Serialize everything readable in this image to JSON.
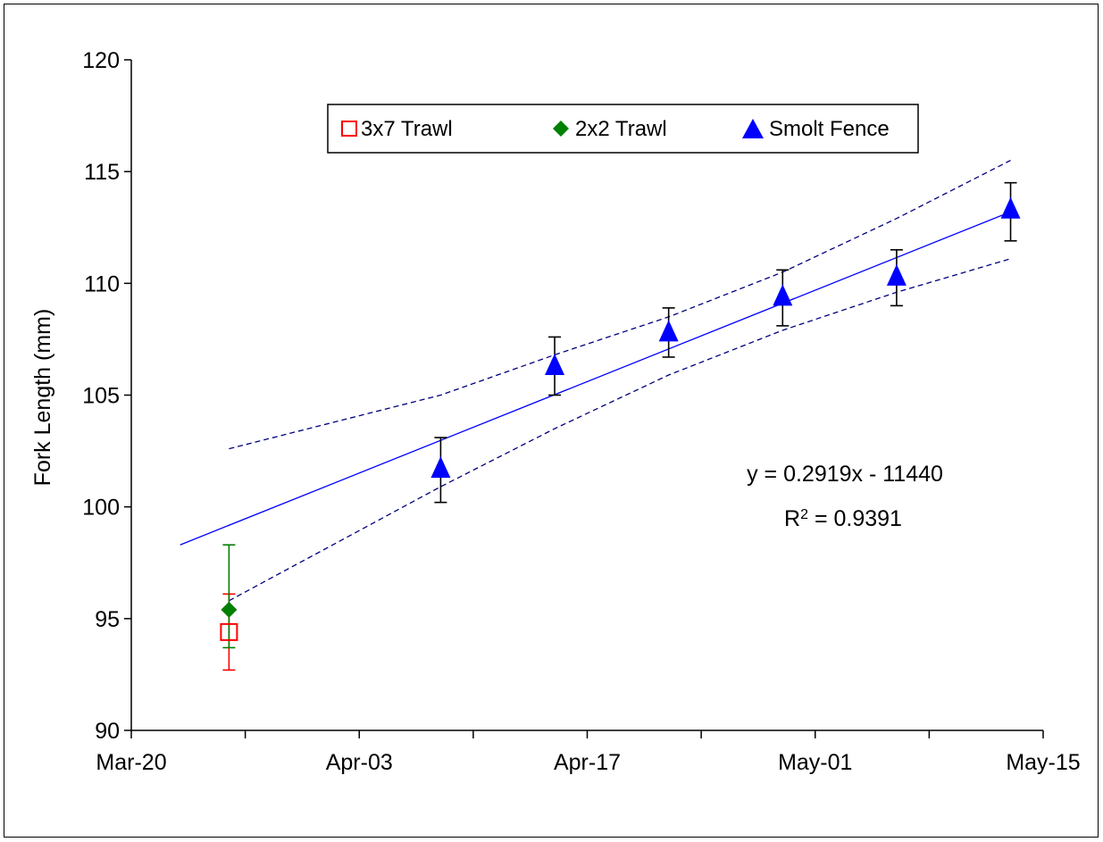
{
  "chart_data": {
    "type": "scatter",
    "title": "",
    "xlabel": "",
    "ylabel": "Fork Length (mm)",
    "x_ticks": [
      "Mar-20",
      "Apr-03",
      "Apr-17",
      "May-01",
      "May-15"
    ],
    "xlim": [
      "Mar-20",
      "May-15"
    ],
    "ylim": [
      90,
      120
    ],
    "y_ticks": [
      90,
      95,
      100,
      105,
      110,
      115,
      120
    ],
    "grid": false,
    "legend_position": "top-center",
    "series": [
      {
        "name": "3x7 Trawl",
        "marker": "open-square",
        "color": "#ff0000",
        "points": [
          {
            "x": "Mar-26",
            "y": 94.4,
            "err_low": 92.7,
            "err_high": 96.1
          }
        ]
      },
      {
        "name": "2x2 Trawl",
        "marker": "diamond",
        "color": "#008000",
        "points": [
          {
            "x": "Mar-26",
            "y": 95.4,
            "err_low": 93.7,
            "err_high": 98.3
          }
        ]
      },
      {
        "name": "Smolt Fence",
        "marker": "triangle",
        "color": "#0000ff",
        "points": [
          {
            "x": "Apr-08",
            "y": 101.7,
            "err_low": 100.2,
            "err_high": 103.1
          },
          {
            "x": "Apr-15",
            "y": 106.3,
            "err_low": 105.0,
            "err_high": 107.6
          },
          {
            "x": "Apr-22",
            "y": 107.8,
            "err_low": 106.7,
            "err_high": 108.9
          },
          {
            "x": "Apr-29",
            "y": 109.4,
            "err_low": 108.1,
            "err_high": 110.6
          },
          {
            "x": "May-06",
            "y": 110.3,
            "err_low": 109.0,
            "err_high": 111.5
          },
          {
            "x": "May-13",
            "y": 113.3,
            "err_low": 111.9,
            "err_high": 114.5
          }
        ]
      }
    ],
    "trendline": {
      "equation": "y = 0.2919x - 11440",
      "r2_label": "R",
      "r2_sup": "2",
      "r2_value": " = 0.9391",
      "color": "#0000ff",
      "points": [
        {
          "x": "Mar-23",
          "y": 98.3
        },
        {
          "x": "May-13",
          "y": 113.2
        }
      ]
    },
    "confidence_band": {
      "color": "#000080",
      "upper": [
        {
          "x": "Mar-26",
          "y": 102.6
        },
        {
          "x": "Apr-08",
          "y": 105.0
        },
        {
          "x": "Apr-15",
          "y": 106.8
        },
        {
          "x": "Apr-22",
          "y": 108.5
        },
        {
          "x": "Apr-29",
          "y": 110.5
        },
        {
          "x": "May-06",
          "y": 112.9
        },
        {
          "x": "May-13",
          "y": 115.5
        }
      ],
      "lower": [
        {
          "x": "Mar-26",
          "y": 95.8
        },
        {
          "x": "Apr-08",
          "y": 100.9
        },
        {
          "x": "Apr-15",
          "y": 103.5
        },
        {
          "x": "Apr-22",
          "y": 105.9
        },
        {
          "x": "Apr-29",
          "y": 107.9
        },
        {
          "x": "May-06",
          "y": 109.6
        },
        {
          "x": "May-13",
          "y": 111.1
        }
      ]
    }
  }
}
